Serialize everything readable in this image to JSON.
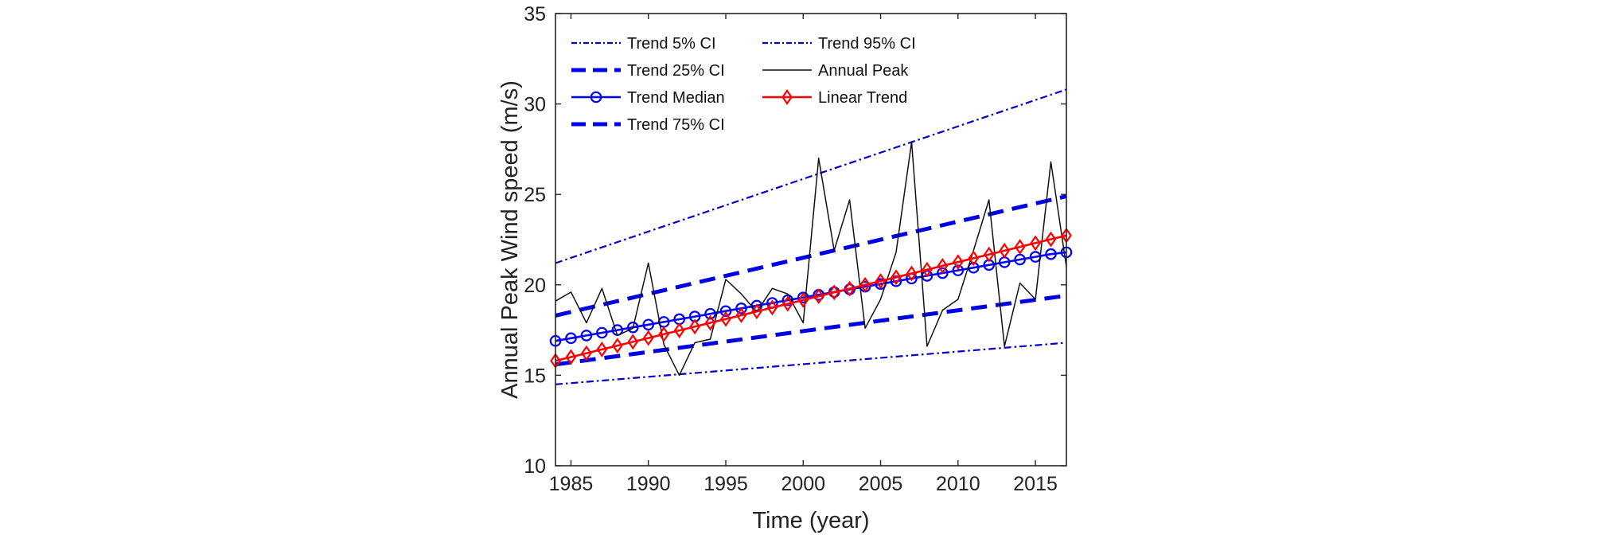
{
  "chart_data": {
    "type": "line",
    "title": "",
    "xlabel": "Time (year)",
    "ylabel": "Annual Peak Wind speed (m/s)",
    "xlim": [
      1984,
      2017
    ],
    "ylim": [
      10,
      35
    ],
    "xticks": [
      1985,
      1990,
      1995,
      2000,
      2005,
      2010,
      2015
    ],
    "yticks": [
      10,
      15,
      20,
      25,
      30,
      35
    ],
    "grid": false,
    "legend_position": "top-left",
    "series": [
      {
        "name": "Trend 5% CI",
        "color": "#0000cc",
        "style": "dashdot-thin",
        "marker": "none",
        "x": [
          1984,
          2017
        ],
        "y": [
          14.5,
          16.8
        ]
      },
      {
        "name": "Trend 25% CI",
        "color": "#0000e6",
        "style": "dashed-thick",
        "marker": "none",
        "x": [
          1984,
          2017
        ],
        "y": [
          15.6,
          19.4
        ]
      },
      {
        "name": "Trend Median",
        "color": "#0000ff",
        "style": "solid",
        "marker": "circle",
        "x": [
          1984,
          1985,
          1986,
          1987,
          1988,
          1989,
          1990,
          1991,
          1992,
          1993,
          1994,
          1995,
          1996,
          1997,
          1998,
          1999,
          2000,
          2001,
          2002,
          2003,
          2004,
          2005,
          2006,
          2007,
          2008,
          2009,
          2010,
          2011,
          2012,
          2013,
          2014,
          2015,
          2016,
          2017
        ],
        "y": [
          16.9,
          17.05,
          17.2,
          17.35,
          17.5,
          17.65,
          17.8,
          17.95,
          18.1,
          18.25,
          18.4,
          18.55,
          18.7,
          18.85,
          19.0,
          19.15,
          19.3,
          19.45,
          19.6,
          19.75,
          19.9,
          20.05,
          20.2,
          20.35,
          20.5,
          20.65,
          20.8,
          20.95,
          21.1,
          21.25,
          21.4,
          21.55,
          21.7,
          21.8
        ]
      },
      {
        "name": "Trend 75% CI",
        "color": "#0000e6",
        "style": "dashed-thick",
        "marker": "none",
        "x": [
          1984,
          2017
        ],
        "y": [
          18.3,
          24.9
        ]
      },
      {
        "name": "Trend 95% CI",
        "color": "#0000cc",
        "style": "dashdot-thin",
        "marker": "none",
        "x": [
          1984,
          2017
        ],
        "y": [
          21.2,
          30.8
        ]
      },
      {
        "name": "Annual Peak",
        "color": "#111111",
        "style": "solid-thin",
        "marker": "none",
        "x": [
          1984,
          1985,
          1986,
          1987,
          1988,
          1989,
          1990,
          1991,
          1992,
          1993,
          1994,
          1995,
          1996,
          1997,
          1998,
          1999,
          2000,
          2001,
          2002,
          2003,
          2004,
          2005,
          2006,
          2007,
          2008,
          2009,
          2010,
          2011,
          2012,
          2013,
          2014,
          2015,
          2016,
          2017
        ],
        "y": [
          19.1,
          19.6,
          17.9,
          19.8,
          17.2,
          17.6,
          21.2,
          16.7,
          15.0,
          16.8,
          17.0,
          20.3,
          19.5,
          18.5,
          19.8,
          19.5,
          17.9,
          27.0,
          21.9,
          24.7,
          17.6,
          19.2,
          21.8,
          27.9,
          16.6,
          18.6,
          19.2,
          21.9,
          24.7,
          16.6,
          20.1,
          19.2,
          26.8,
          21.0
        ]
      },
      {
        "name": "Linear Trend",
        "color": "#ff0000",
        "style": "solid",
        "marker": "diamond",
        "x": [
          1984,
          1985,
          1986,
          1987,
          1988,
          1989,
          1990,
          1991,
          1992,
          1993,
          1994,
          1995,
          1996,
          1997,
          1998,
          1999,
          2000,
          2001,
          2002,
          2003,
          2004,
          2005,
          2006,
          2007,
          2008,
          2009,
          2010,
          2011,
          2012,
          2013,
          2014,
          2015,
          2016,
          2017
        ],
        "y": [
          15.8,
          16.01,
          16.22,
          16.43,
          16.64,
          16.85,
          17.06,
          17.27,
          17.48,
          17.69,
          17.9,
          18.11,
          18.32,
          18.53,
          18.74,
          18.95,
          19.16,
          19.37,
          19.58,
          19.79,
          20.0,
          20.21,
          20.42,
          20.63,
          20.84,
          21.05,
          21.26,
          21.47,
          21.68,
          21.89,
          22.1,
          22.31,
          22.52,
          22.73
        ]
      }
    ],
    "legend_order": [
      [
        "Trend 5% CI",
        "Trend 95% CI"
      ],
      [
        "Trend 25% CI",
        "Annual Peak"
      ],
      [
        "Trend Median",
        "Linear Trend"
      ],
      [
        "Trend 75% CI",
        null
      ]
    ]
  }
}
